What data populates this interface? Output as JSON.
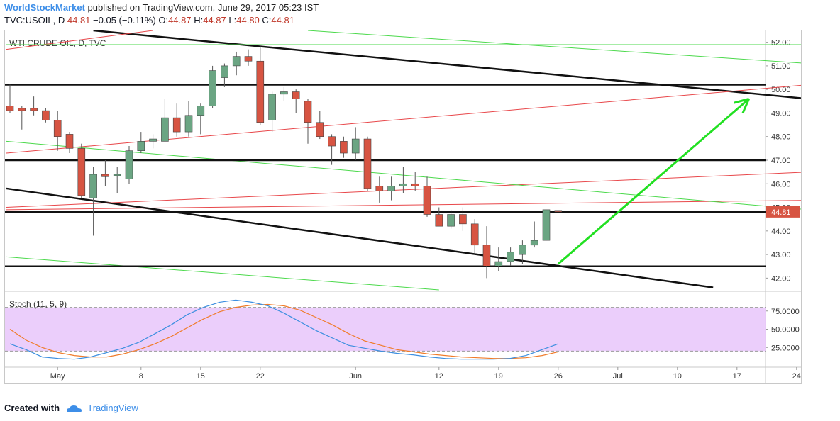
{
  "header": {
    "author": "WorldStockMarket",
    "published_text": "published on TradingView.com, June 29, 2017 05:23 IST",
    "symbol": "TVC:USOIL, D",
    "last": "44.81",
    "change": "−0.05 (−0.11%)",
    "open_label": "O:",
    "open": "44.87",
    "high_label": "H:",
    "high": "44.87",
    "low_label": "L:",
    "low": "44.80",
    "close_label": "C:",
    "close": "44.81"
  },
  "footer": {
    "created_with": "Created with",
    "brand": "TradingView"
  },
  "colors": {
    "up": "#6ba583",
    "down": "#d75442",
    "wick": "#555555",
    "green_line": "#4cd94c",
    "red_line": "#e8474a",
    "stoch_k": "#3d8fe0",
    "stoch_d": "#f07c2a",
    "stoch_band": "#e7c6fa",
    "price_label_bg": "#d75442",
    "arrow": "#22e022"
  },
  "chart_data": {
    "type": "candlestick",
    "title": "WTI CRUDE OIL, D, TVC",
    "ylim": [
      41.5,
      52.5
    ],
    "y_ticks": [
      "52.00",
      "51.00",
      "50.00",
      "49.00",
      "48.00",
      "47.00",
      "46.00",
      "45.00",
      "44.00",
      "43.00",
      "42.00"
    ],
    "last_price_label": "44.81",
    "last_price": 44.81,
    "x_ticks": [
      {
        "label": "May",
        "day": 4
      },
      {
        "label": "8",
        "day": 11
      },
      {
        "label": "15",
        "day": 16
      },
      {
        "label": "22",
        "day": 21
      },
      {
        "label": "Jun",
        "day": 29
      },
      {
        "label": "12",
        "day": 36
      },
      {
        "label": "19",
        "day": 41
      },
      {
        "label": "26",
        "day": 46
      },
      {
        "label": "Jul",
        "day": 51
      },
      {
        "label": "10",
        "day": 56
      },
      {
        "label": "17",
        "day": 61
      },
      {
        "label": "24",
        "day": 66
      }
    ],
    "candles": [
      {
        "d": 0,
        "o": 49.3,
        "h": 50.2,
        "l": 49.0,
        "c": 49.1
      },
      {
        "d": 1,
        "o": 49.2,
        "h": 49.3,
        "l": 48.3,
        "c": 49.1
      },
      {
        "d": 2,
        "o": 49.2,
        "h": 49.7,
        "l": 48.9,
        "c": 49.1
      },
      {
        "d": 3,
        "o": 49.1,
        "h": 49.2,
        "l": 48.6,
        "c": 48.7
      },
      {
        "d": 4,
        "o": 48.7,
        "h": 49.1,
        "l": 47.4,
        "c": 48.0
      },
      {
        "d": 5,
        "o": 48.1,
        "h": 48.2,
        "l": 47.3,
        "c": 47.5
      },
      {
        "d": 6,
        "o": 47.5,
        "h": 47.7,
        "l": 45.4,
        "c": 45.5
      },
      {
        "d": 7,
        "o": 45.4,
        "h": 46.7,
        "l": 43.8,
        "c": 46.4
      },
      {
        "d": 8,
        "o": 46.4,
        "h": 47.0,
        "l": 45.9,
        "c": 46.3
      },
      {
        "d": 9,
        "o": 46.4,
        "h": 46.7,
        "l": 45.6,
        "c": 46.4
      },
      {
        "d": 10,
        "o": 46.2,
        "h": 47.6,
        "l": 46.0,
        "c": 47.4
      },
      {
        "d": 11,
        "o": 47.4,
        "h": 48.2,
        "l": 47.3,
        "c": 47.8
      },
      {
        "d": 12,
        "o": 47.8,
        "h": 48.1,
        "l": 47.5,
        "c": 47.9
      },
      {
        "d": 13,
        "o": 47.8,
        "h": 49.6,
        "l": 47.8,
        "c": 48.8
      },
      {
        "d": 14,
        "o": 48.8,
        "h": 49.4,
        "l": 48.0,
        "c": 48.2
      },
      {
        "d": 15,
        "o": 48.2,
        "h": 49.5,
        "l": 48.0,
        "c": 48.9
      },
      {
        "d": 16,
        "o": 48.9,
        "h": 49.4,
        "l": 48.1,
        "c": 49.3
      },
      {
        "d": 17,
        "o": 49.3,
        "h": 51.0,
        "l": 49.2,
        "c": 50.8
      },
      {
        "d": 18,
        "o": 50.5,
        "h": 51.1,
        "l": 50.1,
        "c": 51.0
      },
      {
        "d": 19,
        "o": 51.0,
        "h": 51.6,
        "l": 50.6,
        "c": 51.4
      },
      {
        "d": 20,
        "o": 51.4,
        "h": 51.7,
        "l": 51.0,
        "c": 51.2
      },
      {
        "d": 21,
        "o": 51.2,
        "h": 51.9,
        "l": 48.5,
        "c": 48.6
      },
      {
        "d": 22,
        "o": 48.7,
        "h": 49.9,
        "l": 48.2,
        "c": 49.8
      },
      {
        "d": 23,
        "o": 49.8,
        "h": 50.1,
        "l": 49.5,
        "c": 49.9
      },
      {
        "d": 24,
        "o": 49.9,
        "h": 50.0,
        "l": 49.0,
        "c": 49.6
      },
      {
        "d": 25,
        "o": 49.5,
        "h": 49.6,
        "l": 47.7,
        "c": 48.6
      },
      {
        "d": 26,
        "o": 48.6,
        "h": 49.1,
        "l": 47.9,
        "c": 48.0
      },
      {
        "d": 27,
        "o": 48.0,
        "h": 48.1,
        "l": 46.8,
        "c": 47.6
      },
      {
        "d": 28,
        "o": 47.8,
        "h": 48.0,
        "l": 47.1,
        "c": 47.3
      },
      {
        "d": 29,
        "o": 47.3,
        "h": 48.4,
        "l": 47.0,
        "c": 47.9
      },
      {
        "d": 30,
        "o": 47.9,
        "h": 48.0,
        "l": 45.7,
        "c": 45.8
      },
      {
        "d": 31,
        "o": 45.9,
        "h": 46.3,
        "l": 45.2,
        "c": 45.7
      },
      {
        "d": 32,
        "o": 45.7,
        "h": 46.3,
        "l": 45.3,
        "c": 45.9
      },
      {
        "d": 33,
        "o": 45.9,
        "h": 46.7,
        "l": 45.6,
        "c": 46.0
      },
      {
        "d": 34,
        "o": 46.0,
        "h": 46.5,
        "l": 45.7,
        "c": 45.9
      },
      {
        "d": 35,
        "o": 45.9,
        "h": 46.3,
        "l": 44.6,
        "c": 44.7
      },
      {
        "d": 36,
        "o": 44.7,
        "h": 45.0,
        "l": 44.2,
        "c": 44.2
      },
      {
        "d": 37,
        "o": 44.2,
        "h": 44.9,
        "l": 44.1,
        "c": 44.7
      },
      {
        "d": 38,
        "o": 44.7,
        "h": 45.0,
        "l": 44.0,
        "c": 44.3
      },
      {
        "d": 39,
        "o": 44.3,
        "h": 44.5,
        "l": 43.0,
        "c": 43.4
      },
      {
        "d": 40,
        "o": 43.4,
        "h": 44.2,
        "l": 42.0,
        "c": 42.5
      },
      {
        "d": 41,
        "o": 42.5,
        "h": 43.3,
        "l": 42.3,
        "c": 42.7
      },
      {
        "d": 42,
        "o": 42.7,
        "h": 43.3,
        "l": 42.5,
        "c": 43.1
      },
      {
        "d": 43,
        "o": 43.0,
        "h": 43.6,
        "l": 42.6,
        "c": 43.4
      },
      {
        "d": 44,
        "o": 43.4,
        "h": 44.4,
        "l": 43.3,
        "c": 43.6
      },
      {
        "d": 45,
        "o": 43.6,
        "h": 44.9,
        "l": 43.6,
        "c": 44.9
      },
      {
        "d": 46,
        "o": 44.87,
        "h": 44.87,
        "l": 44.8,
        "c": 44.81
      }
    ],
    "horizontal_levels": [
      50.2,
      47.0,
      44.8,
      42.5
    ],
    "trendlines": [
      {
        "color": "black",
        "from": [
          7,
          52.5
        ],
        "to": [
          67,
          49.6
        ]
      },
      {
        "color": "black",
        "from": [
          -0.3,
          45.8
        ],
        "to": [
          59,
          41.6
        ]
      },
      {
        "color": "red",
        "from": [
          -0.3,
          51.7
        ],
        "to": [
          12,
          52.5
        ]
      },
      {
        "color": "red",
        "from": [
          -0.3,
          47.3
        ],
        "to": [
          67,
          50.2
        ]
      },
      {
        "color": "red",
        "from": [
          -0.3,
          45.0
        ],
        "to": [
          67,
          46.5
        ]
      },
      {
        "color": "red",
        "from": [
          -0.3,
          44.9
        ],
        "to": [
          67,
          45.3
        ]
      },
      {
        "color": "green",
        "from": [
          -0.3,
          51.9
        ],
        "to": [
          67,
          51.9
        ]
      },
      {
        "color": "green",
        "from": [
          25,
          52.5
        ],
        "to": [
          67,
          51.1
        ]
      },
      {
        "color": "green",
        "from": [
          -0.3,
          47.8
        ],
        "to": [
          67,
          44.9
        ]
      },
      {
        "color": "green",
        "from": [
          -0.3,
          42.9
        ],
        "to": [
          36,
          41.5
        ]
      }
    ],
    "arrow": {
      "from": [
        46,
        42.6
      ],
      "to": [
        62,
        49.6
      ]
    },
    "stochastic": {
      "label": "Stoch (11, 5, 9)",
      "ylim": [
        0,
        100
      ],
      "band": [
        20,
        80
      ],
      "y_ticks": [
        "75.0000",
        "50.0000",
        "25.0000"
      ],
      "k": [
        30,
        22,
        12,
        10,
        9,
        12,
        18,
        24,
        32,
        44,
        56,
        70,
        80,
        87,
        90,
        87,
        82,
        72,
        60,
        48,
        38,
        28,
        24,
        20,
        17,
        15,
        12,
        10,
        9,
        9,
        9,
        10,
        14,
        22,
        30
      ],
      "d": [
        50,
        35,
        25,
        18,
        14,
        12,
        12,
        16,
        22,
        30,
        40,
        52,
        64,
        74,
        80,
        83,
        84,
        82,
        76,
        66,
        56,
        44,
        34,
        28,
        22,
        19,
        16,
        14,
        12,
        11,
        10,
        10,
        11,
        14,
        19
      ]
    }
  }
}
